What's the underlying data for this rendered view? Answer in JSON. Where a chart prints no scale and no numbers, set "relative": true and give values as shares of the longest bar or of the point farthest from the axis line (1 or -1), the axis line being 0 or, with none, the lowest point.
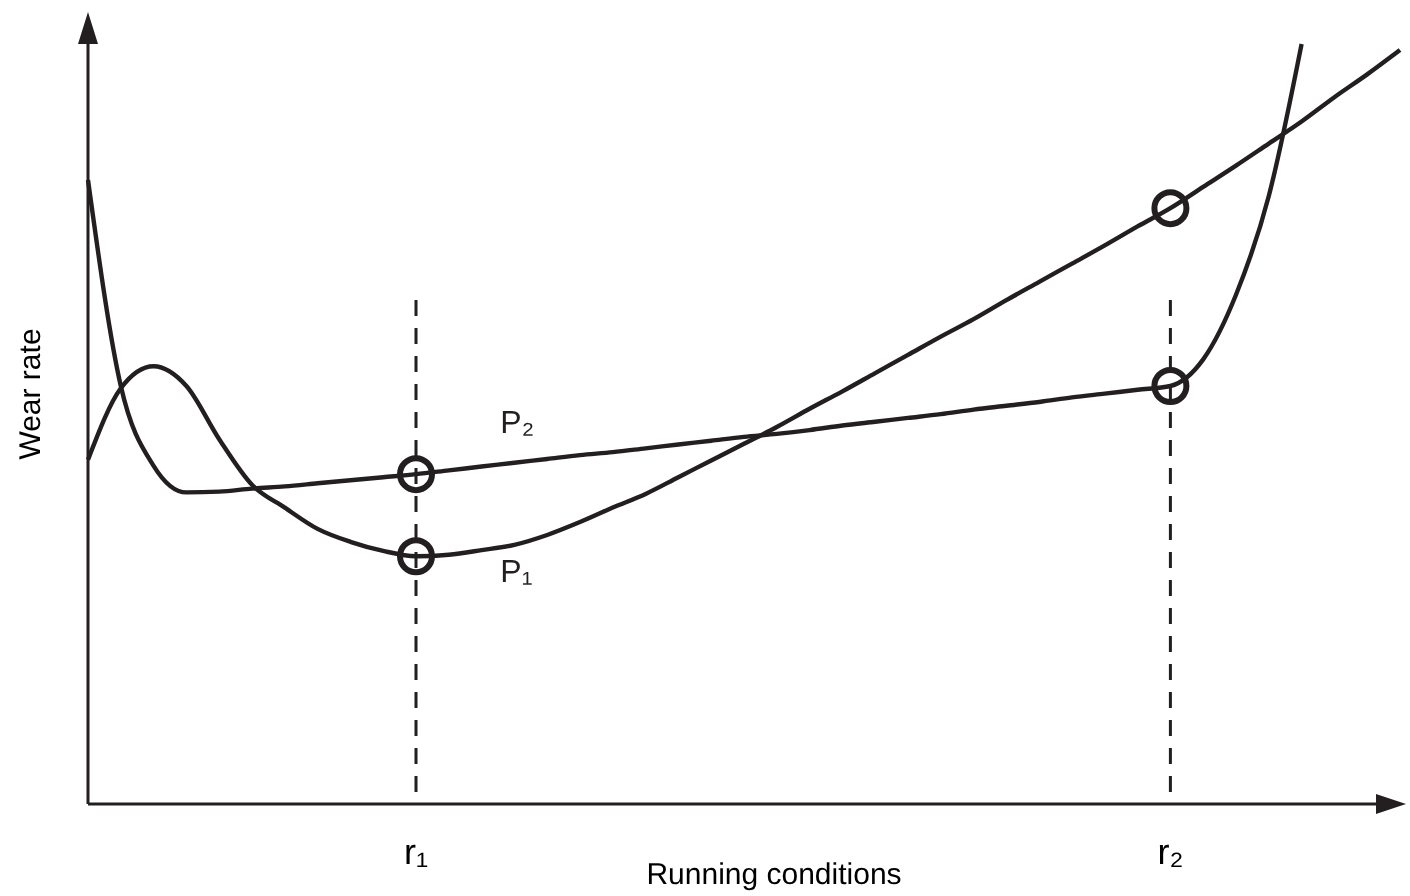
{
  "chart_data": {
    "type": "line",
    "relative": true,
    "xlabel": "Running conditions",
    "ylabel": "Wear rate",
    "marker": "none",
    "line_style": "solid",
    "categories": [
      null,
      null,
      null,
      null,
      null,
      null,
      null,
      null,
      null,
      null,
      "r₁",
      null,
      null,
      null,
      null,
      null,
      null,
      null,
      null,
      null,
      null,
      null,
      null,
      null,
      null,
      null,
      null,
      null,
      null,
      null,
      null,
      null,
      null,
      "r₂",
      null,
      null,
      null,
      null,
      null,
      null,
      null
    ],
    "series": [
      {
        "name": "P₁",
        "color": "#231f20",
        "values": [
          0.453,
          0.547,
          0.576,
          0.55,
          0.48,
          0.42,
          0.39,
          0.362,
          0.345,
          0.333,
          0.326,
          0.328,
          0.334,
          0.341,
          0.354,
          0.371,
          0.39,
          0.408,
          0.43,
          0.452,
          0.474,
          0.496,
          0.52,
          0.543,
          0.567,
          0.591,
          0.615,
          0.638,
          0.663,
          0.687,
          0.711,
          0.735,
          0.76,
          0.784,
          0.812,
          0.84,
          0.869,
          0.898,
          0.93,
          0.96,
          0.992
        ]
      },
      {
        "name": "P₂",
        "color": "#231f20",
        "values": [
          0.821,
          0.55,
          0.445,
          0.41,
          0.411,
          0.415,
          0.418,
          0.422,
          0.426,
          0.43,
          0.434,
          0.439,
          0.444,
          0.449,
          0.454,
          0.459,
          0.463,
          0.468,
          0.473,
          0.478,
          0.483,
          0.487,
          0.492,
          0.498,
          0.503,
          0.508,
          0.513,
          0.519,
          0.524,
          0.529,
          0.535,
          0.54,
          0.545,
          0.55,
          0.585,
          0.67,
          0.8,
          1.0,
          null,
          null,
          null
        ]
      },
      {
        "type": "scatter",
        "marker": "circle",
        "color": "#231f20",
        "x": [
          "r₁",
          "r₁",
          "r₂",
          "r₂"
        ],
        "values": [
          0.434,
          0.326,
          0.55,
          0.784
        ]
      }
    ],
    "ref_lines": [
      {
        "axis": "x",
        "value": "r₁",
        "line_style": "dashed",
        "color": "#231f20"
      },
      {
        "axis": "x",
        "value": "r₂",
        "line_style": "dashed",
        "color": "#231f20"
      }
    ]
  }
}
